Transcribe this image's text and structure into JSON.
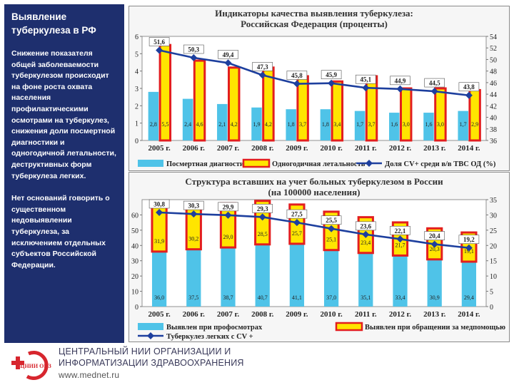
{
  "sidebar": {
    "title": "Выявление туберкулеза в РФ",
    "paragraph1": "Снижение показателя общей заболеваемости туберкулезом происходит на фоне роста охвата населения профилактическими осмотрами на туберкулез, снижения доли посмертной диагностики и одногодичной летальности, деструктивных форм туберкулеза легких.",
    "paragraph2": "Нет оснований говорить о существенном недовыявлении туберкулеза, за исключением отдельных субъектов Российской Федерации."
  },
  "footer": {
    "org_line1": "ЦЕНТРАЛЬНЫЙ НИИ ОРГАНИЗАЦИИ И",
    "org_line2": "ИНФОРМАТИЗАЦИИ ЗДРАВООХРАНЕНИЯ",
    "website": "www.mednet.ru",
    "logo_text": "ЦНИИ ОИЗ"
  },
  "chart_data": [
    {
      "type": "bar",
      "title": "Индикаторы качества выявления туберкулеза: Российская Федерация (проценты)",
      "categories": [
        "2005 г.",
        "2006 г.",
        "2007 г.",
        "2008 г.",
        "2009 г.",
        "2010 г.",
        "2011 г.",
        "2012 г.",
        "2013 г.",
        "2014 г."
      ],
      "series": [
        {
          "name": "Посмертная диагностика",
          "kind": "bar",
          "axis": "left",
          "color": "#4fc3e8",
          "values": [
            2.8,
            2.4,
            2.1,
            1.9,
            1.8,
            1.8,
            1.7,
            1.6,
            1.6,
            1.7
          ]
        },
        {
          "name": "Одногодичная летальность",
          "kind": "bar",
          "axis": "left",
          "color": "#e31e1e",
          "fill": "#ffe500",
          "values": [
            5.5,
            4.6,
            4.2,
            4.2,
            3.7,
            3.4,
            3.7,
            3.0,
            3.0,
            2.9
          ]
        },
        {
          "name": "Доля CV+ среди в/в ТВС ОД (%)",
          "kind": "line",
          "axis": "right",
          "color": "#1d3f9e",
          "values": [
            51.6,
            50.3,
            49.4,
            47.3,
            45.8,
            45.9,
            45.1,
            44.9,
            44.5,
            43.8
          ]
        }
      ],
      "ylim_left": [
        0,
        6
      ],
      "ylim_right": [
        36,
        54
      ],
      "yticks_left": [
        0,
        1,
        2,
        3,
        4,
        5,
        6
      ],
      "yticks_right": [
        36,
        38,
        40,
        42,
        44,
        46,
        48,
        50,
        52,
        54
      ]
    },
    {
      "type": "bar",
      "title": "Структура вставших на учет больных туберкулезом в России (на 100000 населения)",
      "categories": [
        "2005 г.",
        "2006 г.",
        "2007 г.",
        "2008 г.",
        "2009 г.",
        "2010 г.",
        "2011 г.",
        "2012 г.",
        "2013 г.",
        "2014 г."
      ],
      "series": [
        {
          "name": "Выявлен при профосмотрах",
          "kind": "bar",
          "axis": "left",
          "stack": "a",
          "color": "#4fc3e8",
          "values": [
            36.0,
            37.5,
            38.7,
            40.7,
            41.1,
            37.0,
            35.1,
            33.4,
            30.9,
            29.4
          ]
        },
        {
          "name": "Выявлен при обращении за медпомощью",
          "kind": "bar",
          "axis": "left",
          "stack": "a",
          "color": "#e31e1e",
          "fill": "#ffe500",
          "values": [
            31.9,
            30.2,
            29.0,
            28.5,
            25.7,
            25.1,
            23.4,
            21.7,
            20.3,
            19.1
          ]
        },
        {
          "name": "Туберкулез легких с CV +",
          "kind": "line",
          "axis": "right",
          "color": "#1d3f9e",
          "values": [
            30.8,
            30.3,
            29.9,
            29.3,
            27.5,
            25.5,
            23.6,
            22.1,
            20.4,
            19.2
          ]
        }
      ],
      "ylim_left": [
        0,
        70
      ],
      "ylim_right": [
        0,
        35
      ],
      "yticks_left": [
        0,
        10,
        20,
        30,
        40,
        50,
        60
      ],
      "yticks_right": [
        0,
        5,
        10,
        15,
        20,
        25,
        30,
        35
      ]
    }
  ]
}
